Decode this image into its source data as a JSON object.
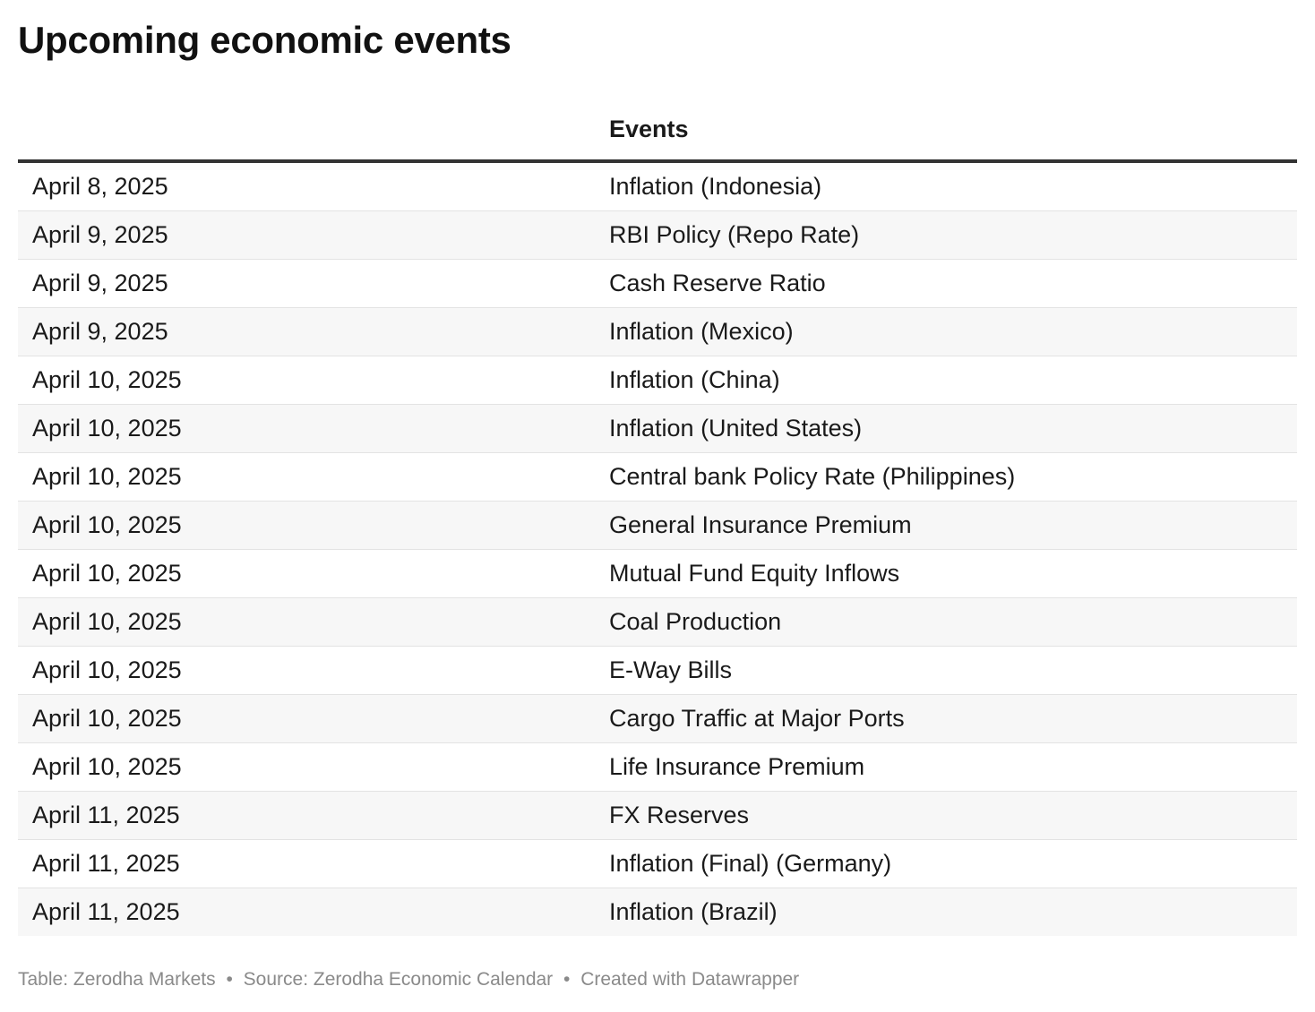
{
  "title": "Upcoming economic events",
  "table": {
    "columns": [
      "",
      "Events"
    ],
    "rows": [
      {
        "date": "April 8, 2025",
        "event": "Inflation (Indonesia)"
      },
      {
        "date": "April 9, 2025",
        "event": "RBI Policy (Repo Rate)"
      },
      {
        "date": "April 9, 2025",
        "event": "Cash Reserve Ratio"
      },
      {
        "date": "April 9, 2025",
        "event": "Inflation (Mexico)"
      },
      {
        "date": "April 10, 2025",
        "event": "Inflation (China)"
      },
      {
        "date": "April 10, 2025",
        "event": "Inflation (United States)"
      },
      {
        "date": "April 10, 2025",
        "event": "Central bank Policy Rate (Philippines)"
      },
      {
        "date": "April 10, 2025",
        "event": "General Insurance Premium"
      },
      {
        "date": "April 10, 2025",
        "event": "Mutual Fund Equity Inflows"
      },
      {
        "date": "April 10, 2025",
        "event": "Coal Production"
      },
      {
        "date": "April 10, 2025",
        "event": "E-Way Bills"
      },
      {
        "date": "April 10, 2025",
        "event": "Cargo Traffic at Major Ports"
      },
      {
        "date": "April 10, 2025",
        "event": "Life Insurance Premium"
      },
      {
        "date": "April 11, 2025",
        "event": "FX Reserves"
      },
      {
        "date": "April 11, 2025",
        "event": "Inflation (Final) (Germany)"
      },
      {
        "date": "April 11, 2025",
        "event": "Inflation (Brazil)"
      }
    ]
  },
  "footer": {
    "table_credit": "Table: Zerodha Markets",
    "source": "Source: Zerodha Economic Calendar",
    "created_with": "Created with Datawrapper",
    "separator": "•"
  },
  "colors": {
    "header_rule": "#333333",
    "row_stripe": "#f7f7f7",
    "row_divider": "#e3e3e3",
    "footer_text": "#8a8a8a"
  }
}
